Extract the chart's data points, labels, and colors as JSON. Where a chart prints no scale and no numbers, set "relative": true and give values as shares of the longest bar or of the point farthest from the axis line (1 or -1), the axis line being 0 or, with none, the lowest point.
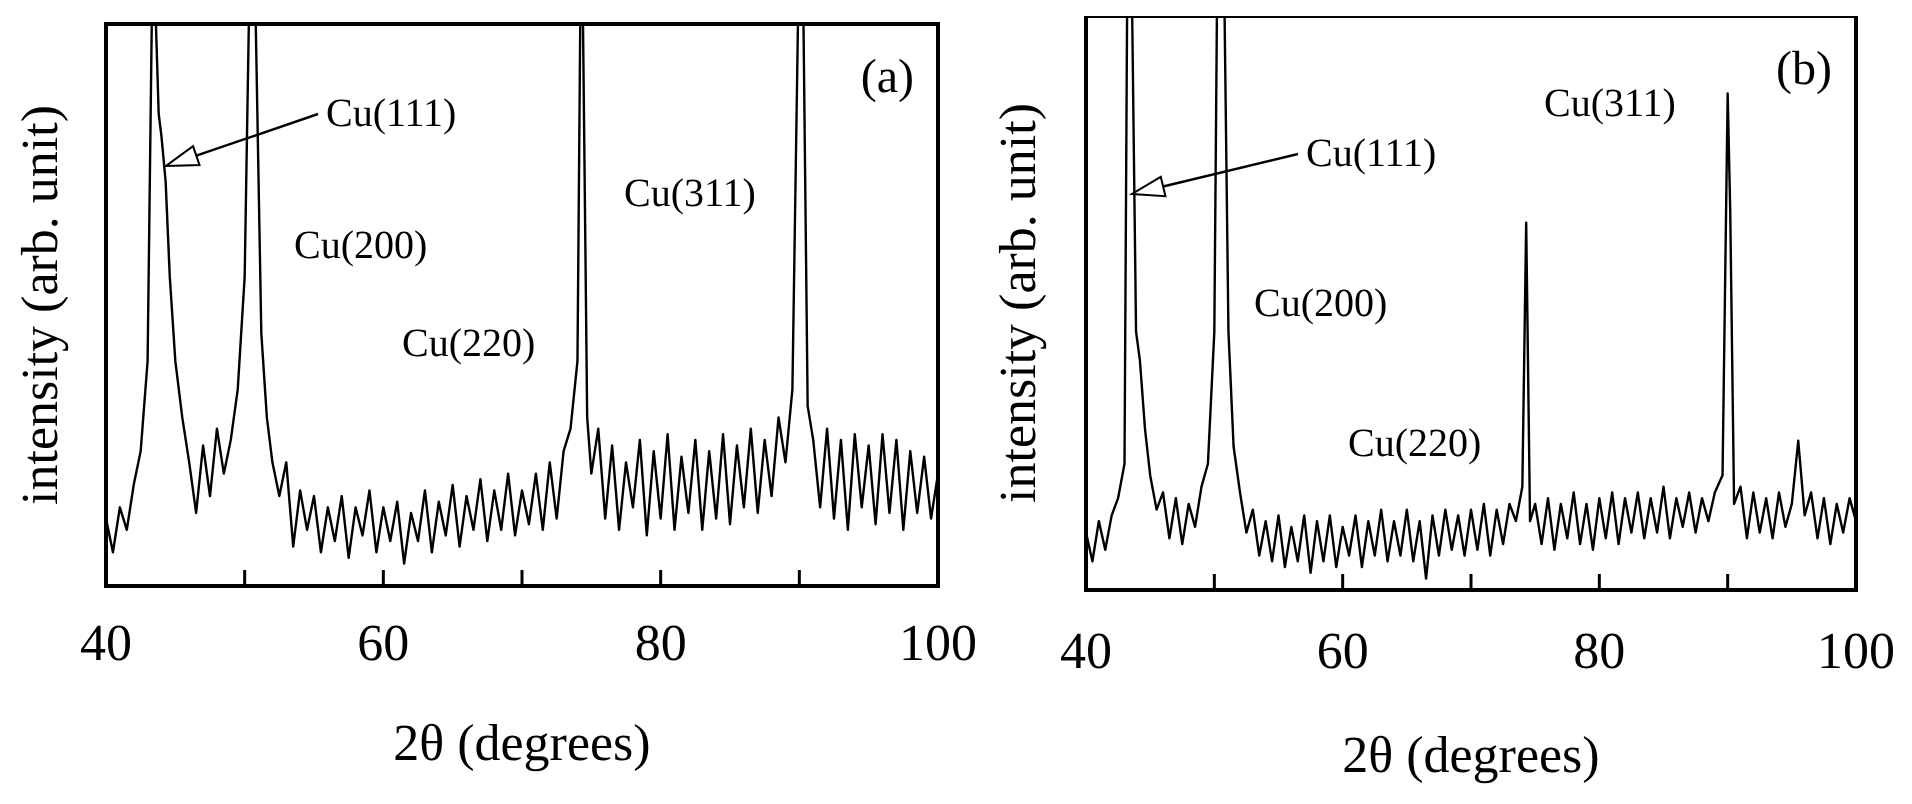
{
  "chart_data": [
    {
      "type": "line",
      "relative": true,
      "xlabel": "2θ (degrees)",
      "ylabel": "intensity (arb. unit)",
      "xlim": [
        40,
        100
      ],
      "xticks": [
        40,
        {
          "value": 50,
          "label": null
        },
        60,
        {
          "value": 70,
          "label": null
        },
        80,
        {
          "value": 90,
          "label": null
        },
        100
      ],
      "annotations": [
        "Cu(111)",
        "Cu(200)",
        "Cu(220)",
        "Cu(311)",
        "(a)"
      ],
      "x": [
        40,
        40.5,
        41,
        41.5,
        42,
        42.5,
        43,
        43.3,
        43.6,
        43.8,
        44,
        44.3,
        44.6,
        45,
        45.5,
        46,
        46.5,
        47,
        47.5,
        48,
        48.5,
        49,
        49.5,
        50,
        50.3,
        50.8,
        51.2,
        51.6,
        52,
        52.5,
        53,
        53.5,
        54,
        54.5,
        55,
        55.5,
        56,
        56.5,
        57,
        57.5,
        58,
        58.5,
        59,
        59.5,
        60,
        60.5,
        61,
        61.5,
        62,
        62.5,
        63,
        63.5,
        64,
        64.5,
        65,
        65.5,
        66,
        66.5,
        67,
        67.5,
        68,
        68.5,
        69,
        69.5,
        70,
        70.5,
        71,
        71.5,
        72,
        72.5,
        73,
        73.5,
        74,
        74.2,
        74.4,
        74.7,
        75,
        75.5,
        76,
        76.5,
        77,
        77.5,
        78,
        78.5,
        79,
        79.5,
        80,
        80.5,
        81,
        81.5,
        82,
        82.5,
        83,
        83.5,
        84,
        84.5,
        85,
        85.5,
        86,
        86.5,
        87,
        87.5,
        88,
        88.5,
        89,
        89.5,
        89.9,
        90.3,
        90.6,
        91,
        91.5,
        92,
        92.5,
        93,
        93.5,
        94,
        94.5,
        95,
        95.5,
        96,
        96.5,
        97,
        97.5,
        98,
        98.5,
        99,
        99.5,
        100
      ],
      "series": [
        {
          "color": "#000000",
          "values": [
            0.12,
            0.06,
            0.14,
            0.1,
            0.18,
            0.24,
            0.4,
            1,
            1,
            0.84,
            0.8,
            0.72,
            0.55,
            0.4,
            0.3,
            0.22,
            0.13,
            0.25,
            0.16,
            0.28,
            0.2,
            0.26,
            0.35,
            0.55,
            1,
            1,
            0.45,
            0.3,
            0.22,
            0.16,
            0.22,
            0.07,
            0.17,
            0.1,
            0.16,
            0.06,
            0.14,
            0.08,
            0.16,
            0.05,
            0.14,
            0.09,
            0.17,
            0.06,
            0.14,
            0.08,
            0.15,
            0.04,
            0.13,
            0.08,
            0.17,
            0.06,
            0.15,
            0.09,
            0.18,
            0.07,
            0.16,
            0.1,
            0.19,
            0.08,
            0.17,
            0.1,
            0.2,
            0.09,
            0.17,
            0.11,
            0.2,
            0.1,
            0.22,
            0.12,
            0.24,
            0.28,
            0.4,
            1,
            1,
            0.3,
            0.2,
            0.28,
            0.12,
            0.25,
            0.1,
            0.22,
            0.14,
            0.26,
            0.09,
            0.24,
            0.12,
            0.27,
            0.1,
            0.23,
            0.13,
            0.26,
            0.1,
            0.24,
            0.12,
            0.27,
            0.11,
            0.25,
            0.14,
            0.28,
            0.13,
            0.26,
            0.16,
            0.3,
            0.22,
            0.35,
            1,
            1,
            0.32,
            0.26,
            0.14,
            0.28,
            0.12,
            0.26,
            0.1,
            0.27,
            0.14,
            0.25,
            0.11,
            0.27,
            0.13,
            0.26,
            0.1,
            0.24,
            0.13,
            0.23,
            0.12,
            0.2
          ]
        }
      ]
    },
    {
      "type": "line",
      "relative": true,
      "xlabel": "2θ (degrees)",
      "ylabel": "intensity (arb. unit)",
      "xlim": [
        40,
        100
      ],
      "xticks": [
        40,
        {
          "value": 50,
          "label": null
        },
        60,
        {
          "value": 70,
          "label": null
        },
        80,
        {
          "value": 90,
          "label": null
        },
        100
      ],
      "annotations": [
        "Cu(111)",
        "Cu(200)",
        "Cu(220)",
        "Cu(311)",
        "(b)"
      ],
      "x": [
        40,
        40.5,
        41,
        41.5,
        42,
        42.5,
        43,
        43.2,
        43.6,
        43.9,
        44.2,
        44.6,
        45,
        45.5,
        46,
        46.5,
        47,
        47.5,
        48,
        48.5,
        49,
        49.5,
        50,
        50.2,
        50.8,
        51.1,
        51.5,
        52,
        52.5,
        53,
        53.5,
        54,
        54.5,
        55,
        55.5,
        56,
        56.5,
        57,
        57.5,
        58,
        58.5,
        59,
        59.5,
        60,
        60.5,
        61,
        61.5,
        62,
        62.5,
        63,
        63.5,
        64,
        64.5,
        65,
        65.5,
        66,
        66.5,
        67,
        67.5,
        68,
        68.5,
        69,
        69.5,
        70,
        70.5,
        71,
        71.5,
        72,
        72.5,
        73,
        73.5,
        74,
        74.3,
        74.6,
        75,
        75.5,
        76,
        76.5,
        77,
        77.5,
        78,
        78.5,
        79,
        79.5,
        80,
        80.5,
        81,
        81.5,
        82,
        82.5,
        83,
        83.5,
        84,
        84.5,
        85,
        85.5,
        86,
        86.5,
        87,
        87.5,
        88,
        88.5,
        89,
        89.6,
        90,
        90.2,
        90.5,
        91,
        91.5,
        92,
        92.5,
        93,
        93.5,
        94,
        94.5,
        95,
        95.5,
        96,
        96.5,
        97,
        97.5,
        98,
        98.5,
        99,
        99.5,
        100
      ],
      "series": [
        {
          "color": "#000000",
          "values": [
            0.1,
            0.05,
            0.12,
            0.07,
            0.13,
            0.16,
            0.22,
            1,
            1,
            0.45,
            0.4,
            0.28,
            0.2,
            0.14,
            0.17,
            0.09,
            0.16,
            0.08,
            0.15,
            0.11,
            0.18,
            0.22,
            0.45,
            1,
            1,
            0.45,
            0.25,
            0.17,
            0.1,
            0.14,
            0.06,
            0.12,
            0.05,
            0.13,
            0.04,
            0.11,
            0.05,
            0.13,
            0.03,
            0.12,
            0.05,
            0.13,
            0.04,
            0.11,
            0.06,
            0.13,
            0.04,
            0.12,
            0.06,
            0.14,
            0.05,
            0.12,
            0.06,
            0.14,
            0.05,
            0.12,
            0.02,
            0.13,
            0.06,
            0.14,
            0.07,
            0.13,
            0.06,
            0.14,
            0.07,
            0.15,
            0.06,
            0.14,
            0.08,
            0.15,
            0.12,
            0.18,
            0.64,
            0.12,
            0.15,
            0.08,
            0.16,
            0.07,
            0.15,
            0.09,
            0.17,
            0.08,
            0.15,
            0.07,
            0.16,
            0.09,
            0.17,
            0.08,
            0.16,
            0.1,
            0.17,
            0.09,
            0.16,
            0.1,
            0.18,
            0.09,
            0.16,
            0.11,
            0.17,
            0.1,
            0.16,
            0.12,
            0.17,
            0.2,
            0.865,
            0.66,
            0.15,
            0.18,
            0.09,
            0.17,
            0.1,
            0.16,
            0.09,
            0.17,
            0.11,
            0.15,
            0.26,
            0.13,
            0.17,
            0.09,
            0.16,
            0.08,
            0.15,
            0.1,
            0.16,
            0.12
          ]
        }
      ]
    }
  ]
}
